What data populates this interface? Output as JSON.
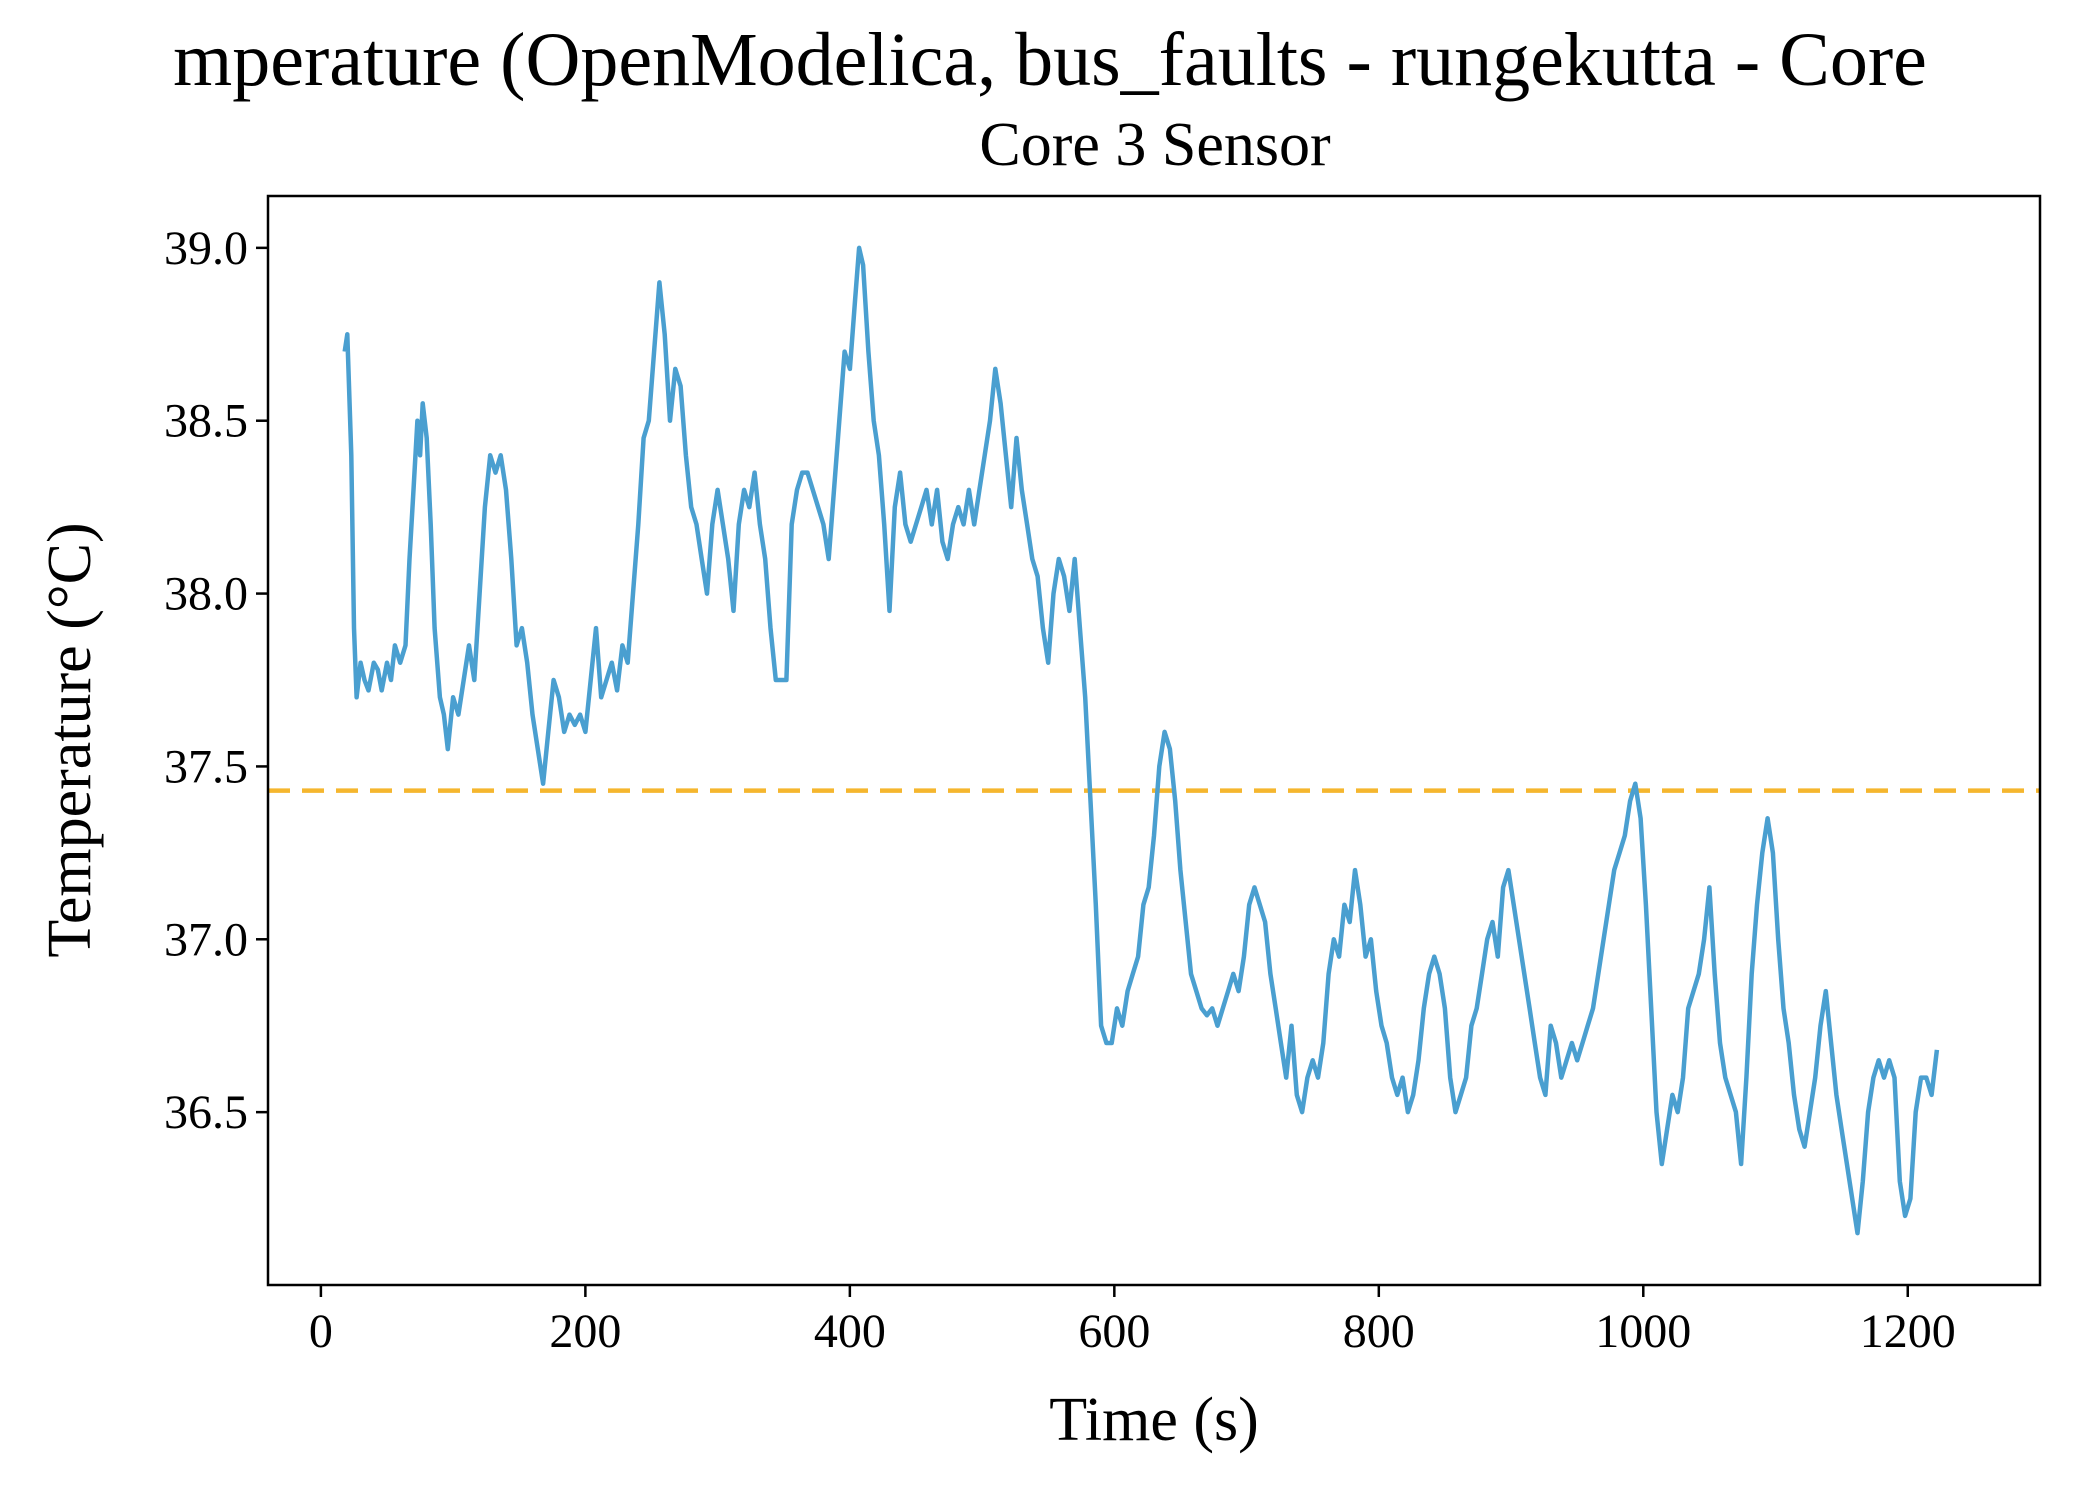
{
  "chart_data": {
    "type": "line",
    "title": "mperature (OpenModelica, bus_faults - rungekutta - Core",
    "subtitle": "Core 3 Sensor",
    "xlabel": "Time (s)",
    "ylabel": "Temperature (°C)",
    "xlim": [
      -40,
      1300
    ],
    "ylim": [
      36.0,
      39.15
    ],
    "x_ticks": [
      0,
      200,
      400,
      600,
      800,
      1000,
      1200
    ],
    "y_ticks": [
      36.5,
      37.0,
      37.5,
      38.0,
      38.5,
      39.0
    ],
    "x_tick_labels": [
      "0",
      "200",
      "400",
      "600",
      "800",
      "1000",
      "1200"
    ],
    "y_tick_labels": [
      "36.5",
      "37.0",
      "37.5",
      "38.0",
      "38.5",
      "39.0"
    ],
    "grid": false,
    "reference_line": {
      "y": 37.43,
      "color": "#F5B62E",
      "style": "dashed"
    },
    "series": [
      {
        "color": "#4A9FD0",
        "points": [
          [
            18,
            38.7
          ],
          [
            20,
            38.75
          ],
          [
            23,
            38.4
          ],
          [
            25,
            37.9
          ],
          [
            27,
            37.7
          ],
          [
            30,
            37.8
          ],
          [
            33,
            37.75
          ],
          [
            36,
            37.72
          ],
          [
            40,
            37.8
          ],
          [
            43,
            37.78
          ],
          [
            46,
            37.72
          ],
          [
            50,
            37.8
          ],
          [
            53,
            37.75
          ],
          [
            56,
            37.85
          ],
          [
            60,
            37.8
          ],
          [
            64,
            37.85
          ],
          [
            67,
            38.1
          ],
          [
            70,
            38.3
          ],
          [
            73,
            38.5
          ],
          [
            75,
            38.4
          ],
          [
            77,
            38.55
          ],
          [
            80,
            38.45
          ],
          [
            83,
            38.2
          ],
          [
            86,
            37.9
          ],
          [
            90,
            37.7
          ],
          [
            93,
            37.65
          ],
          [
            96,
            37.55
          ],
          [
            100,
            37.7
          ],
          [
            104,
            37.65
          ],
          [
            108,
            37.75
          ],
          [
            112,
            37.85
          ],
          [
            116,
            37.75
          ],
          [
            120,
            38.0
          ],
          [
            124,
            38.25
          ],
          [
            128,
            38.4
          ],
          [
            132,
            38.35
          ],
          [
            136,
            38.4
          ],
          [
            140,
            38.3
          ],
          [
            144,
            38.1
          ],
          [
            148,
            37.85
          ],
          [
            152,
            37.9
          ],
          [
            156,
            37.8
          ],
          [
            160,
            37.65
          ],
          [
            164,
            37.55
          ],
          [
            168,
            37.45
          ],
          [
            172,
            37.6
          ],
          [
            176,
            37.75
          ],
          [
            180,
            37.7
          ],
          [
            184,
            37.6
          ],
          [
            188,
            37.65
          ],
          [
            192,
            37.62
          ],
          [
            196,
            37.65
          ],
          [
            200,
            37.6
          ],
          [
            204,
            37.75
          ],
          [
            208,
            37.9
          ],
          [
            212,
            37.7
          ],
          [
            216,
            37.75
          ],
          [
            220,
            37.8
          ],
          [
            224,
            37.72
          ],
          [
            228,
            37.85
          ],
          [
            232,
            37.8
          ],
          [
            236,
            38.0
          ],
          [
            240,
            38.2
          ],
          [
            244,
            38.45
          ],
          [
            248,
            38.5
          ],
          [
            252,
            38.7
          ],
          [
            256,
            38.9
          ],
          [
            260,
            38.75
          ],
          [
            264,
            38.5
          ],
          [
            268,
            38.65
          ],
          [
            272,
            38.6
          ],
          [
            276,
            38.4
          ],
          [
            280,
            38.25
          ],
          [
            284,
            38.2
          ],
          [
            288,
            38.1
          ],
          [
            292,
            38.0
          ],
          [
            296,
            38.2
          ],
          [
            300,
            38.3
          ],
          [
            304,
            38.2
          ],
          [
            308,
            38.1
          ],
          [
            312,
            37.95
          ],
          [
            316,
            38.2
          ],
          [
            320,
            38.3
          ],
          [
            324,
            38.25
          ],
          [
            328,
            38.35
          ],
          [
            332,
            38.2
          ],
          [
            336,
            38.1
          ],
          [
            340,
            37.9
          ],
          [
            344,
            37.75
          ],
          [
            348,
            37.75
          ],
          [
            352,
            37.75
          ],
          [
            356,
            38.2
          ],
          [
            360,
            38.3
          ],
          [
            364,
            38.35
          ],
          [
            368,
            38.35
          ],
          [
            372,
            38.3
          ],
          [
            376,
            38.25
          ],
          [
            380,
            38.2
          ],
          [
            384,
            38.1
          ],
          [
            388,
            38.3
          ],
          [
            392,
            38.5
          ],
          [
            396,
            38.7
          ],
          [
            400,
            38.65
          ],
          [
            404,
            38.85
          ],
          [
            407,
            39.0
          ],
          [
            410,
            38.95
          ],
          [
            414,
            38.7
          ],
          [
            418,
            38.5
          ],
          [
            422,
            38.4
          ],
          [
            426,
            38.2
          ],
          [
            430,
            37.95
          ],
          [
            434,
            38.25
          ],
          [
            438,
            38.35
          ],
          [
            442,
            38.2
          ],
          [
            446,
            38.15
          ],
          [
            450,
            38.2
          ],
          [
            454,
            38.25
          ],
          [
            458,
            38.3
          ],
          [
            462,
            38.2
          ],
          [
            466,
            38.3
          ],
          [
            470,
            38.15
          ],
          [
            474,
            38.1
          ],
          [
            478,
            38.2
          ],
          [
            482,
            38.25
          ],
          [
            486,
            38.2
          ],
          [
            490,
            38.3
          ],
          [
            494,
            38.2
          ],
          [
            498,
            38.3
          ],
          [
            502,
            38.4
          ],
          [
            506,
            38.5
          ],
          [
            510,
            38.65
          ],
          [
            514,
            38.55
          ],
          [
            518,
            38.4
          ],
          [
            522,
            38.25
          ],
          [
            526,
            38.45
          ],
          [
            530,
            38.3
          ],
          [
            534,
            38.2
          ],
          [
            538,
            38.1
          ],
          [
            542,
            38.05
          ],
          [
            546,
            37.9
          ],
          [
            550,
            37.8
          ],
          [
            554,
            38.0
          ],
          [
            558,
            38.1
          ],
          [
            562,
            38.05
          ],
          [
            566,
            37.95
          ],
          [
            570,
            38.1
          ],
          [
            574,
            37.9
          ],
          [
            578,
            37.7
          ],
          [
            582,
            37.4
          ],
          [
            586,
            37.1
          ],
          [
            590,
            36.75
          ],
          [
            594,
            36.7
          ],
          [
            598,
            36.7
          ],
          [
            602,
            36.8
          ],
          [
            606,
            36.75
          ],
          [
            610,
            36.85
          ],
          [
            614,
            36.9
          ],
          [
            618,
            36.95
          ],
          [
            622,
            37.1
          ],
          [
            626,
            37.15
          ],
          [
            630,
            37.3
          ],
          [
            634,
            37.5
          ],
          [
            638,
            37.6
          ],
          [
            642,
            37.55
          ],
          [
            646,
            37.4
          ],
          [
            650,
            37.2
          ],
          [
            654,
            37.05
          ],
          [
            658,
            36.9
          ],
          [
            662,
            36.85
          ],
          [
            666,
            36.8
          ],
          [
            670,
            36.78
          ],
          [
            674,
            36.8
          ],
          [
            678,
            36.75
          ],
          [
            682,
            36.8
          ],
          [
            686,
            36.85
          ],
          [
            690,
            36.9
          ],
          [
            694,
            36.85
          ],
          [
            698,
            36.95
          ],
          [
            702,
            37.1
          ],
          [
            706,
            37.15
          ],
          [
            710,
            37.1
          ],
          [
            714,
            37.05
          ],
          [
            718,
            36.9
          ],
          [
            722,
            36.8
          ],
          [
            726,
            36.7
          ],
          [
            730,
            36.6
          ],
          [
            734,
            36.75
          ],
          [
            738,
            36.55
          ],
          [
            742,
            36.5
          ],
          [
            746,
            36.6
          ],
          [
            750,
            36.65
          ],
          [
            754,
            36.6
          ],
          [
            758,
            36.7
          ],
          [
            762,
            36.9
          ],
          [
            766,
            37.0
          ],
          [
            770,
            36.95
          ],
          [
            774,
            37.1
          ],
          [
            778,
            37.05
          ],
          [
            782,
            37.2
          ],
          [
            786,
            37.1
          ],
          [
            790,
            36.95
          ],
          [
            794,
            37.0
          ],
          [
            798,
            36.85
          ],
          [
            802,
            36.75
          ],
          [
            806,
            36.7
          ],
          [
            810,
            36.6
          ],
          [
            814,
            36.55
          ],
          [
            818,
            36.6
          ],
          [
            822,
            36.5
          ],
          [
            826,
            36.55
          ],
          [
            830,
            36.65
          ],
          [
            834,
            36.8
          ],
          [
            838,
            36.9
          ],
          [
            842,
            36.95
          ],
          [
            846,
            36.9
          ],
          [
            850,
            36.8
          ],
          [
            854,
            36.6
          ],
          [
            858,
            36.5
          ],
          [
            862,
            36.55
          ],
          [
            866,
            36.6
          ],
          [
            870,
            36.75
          ],
          [
            874,
            36.8
          ],
          [
            878,
            36.9
          ],
          [
            882,
            37.0
          ],
          [
            886,
            37.05
          ],
          [
            890,
            36.95
          ],
          [
            894,
            37.15
          ],
          [
            898,
            37.2
          ],
          [
            902,
            37.1
          ],
          [
            906,
            37.0
          ],
          [
            910,
            36.9
          ],
          [
            914,
            36.8
          ],
          [
            918,
            36.7
          ],
          [
            922,
            36.6
          ],
          [
            926,
            36.55
          ],
          [
            930,
            36.75
          ],
          [
            934,
            36.7
          ],
          [
            938,
            36.6
          ],
          [
            942,
            36.65
          ],
          [
            946,
            36.7
          ],
          [
            950,
            36.65
          ],
          [
            954,
            36.7
          ],
          [
            958,
            36.75
          ],
          [
            962,
            36.8
          ],
          [
            966,
            36.9
          ],
          [
            970,
            37.0
          ],
          [
            974,
            37.1
          ],
          [
            978,
            37.2
          ],
          [
            982,
            37.25
          ],
          [
            986,
            37.3
          ],
          [
            990,
            37.4
          ],
          [
            994,
            37.45
          ],
          [
            998,
            37.35
          ],
          [
            1002,
            37.1
          ],
          [
            1006,
            36.8
          ],
          [
            1010,
            36.5
          ],
          [
            1014,
            36.35
          ],
          [
            1018,
            36.45
          ],
          [
            1022,
            36.55
          ],
          [
            1026,
            36.5
          ],
          [
            1030,
            36.6
          ],
          [
            1034,
            36.8
          ],
          [
            1038,
            36.85
          ],
          [
            1042,
            36.9
          ],
          [
            1046,
            37.0
          ],
          [
            1050,
            37.15
          ],
          [
            1054,
            36.9
          ],
          [
            1058,
            36.7
          ],
          [
            1062,
            36.6
          ],
          [
            1066,
            36.55
          ],
          [
            1070,
            36.5
          ],
          [
            1074,
            36.35
          ],
          [
            1078,
            36.6
          ],
          [
            1082,
            36.9
          ],
          [
            1086,
            37.1
          ],
          [
            1090,
            37.25
          ],
          [
            1094,
            37.35
          ],
          [
            1098,
            37.25
          ],
          [
            1102,
            37.0
          ],
          [
            1106,
            36.8
          ],
          [
            1110,
            36.7
          ],
          [
            1114,
            36.55
          ],
          [
            1118,
            36.45
          ],
          [
            1122,
            36.4
          ],
          [
            1126,
            36.5
          ],
          [
            1130,
            36.6
          ],
          [
            1134,
            36.75
          ],
          [
            1138,
            36.85
          ],
          [
            1142,
            36.7
          ],
          [
            1146,
            36.55
          ],
          [
            1150,
            36.45
          ],
          [
            1154,
            36.35
          ],
          [
            1158,
            36.25
          ],
          [
            1162,
            36.15
          ],
          [
            1166,
            36.3
          ],
          [
            1170,
            36.5
          ],
          [
            1174,
            36.6
          ],
          [
            1178,
            36.65
          ],
          [
            1182,
            36.6
          ],
          [
            1186,
            36.65
          ],
          [
            1190,
            36.6
          ],
          [
            1194,
            36.3
          ],
          [
            1198,
            36.2
          ],
          [
            1202,
            36.25
          ],
          [
            1206,
            36.5
          ],
          [
            1210,
            36.6
          ],
          [
            1214,
            36.6
          ],
          [
            1218,
            36.55
          ],
          [
            1222,
            36.68
          ]
        ]
      }
    ]
  }
}
